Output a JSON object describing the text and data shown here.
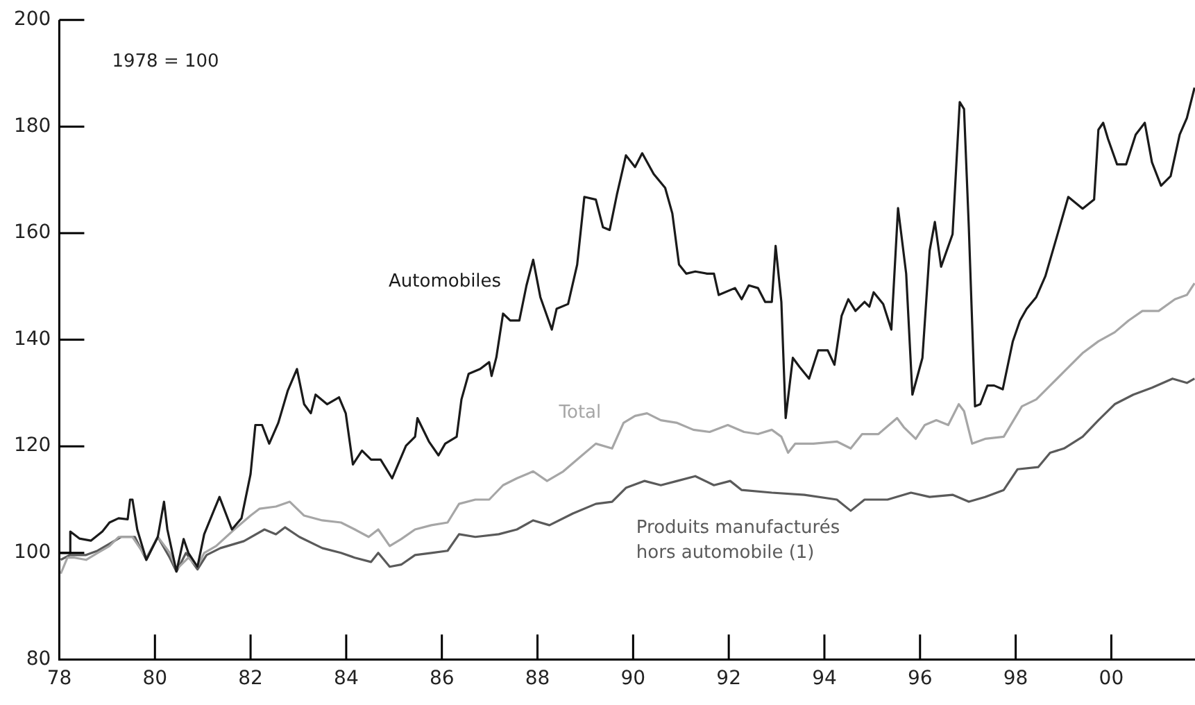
{
  "chart_data": {
    "type": "line",
    "annotations": [
      "1978 = 100"
    ],
    "xlim": [
      1978,
      2001.75
    ],
    "ylim": [
      80,
      200
    ],
    "xticks": [
      {
        "value": 1978,
        "label": "78"
      },
      {
        "value": 1980,
        "label": "80"
      },
      {
        "value": 1982,
        "label": "82"
      },
      {
        "value": 1984,
        "label": "84"
      },
      {
        "value": 1986,
        "label": "86"
      },
      {
        "value": 1988,
        "label": "88"
      },
      {
        "value": 1990,
        "label": "90"
      },
      {
        "value": 1992,
        "label": "92"
      },
      {
        "value": 1994,
        "label": "94"
      },
      {
        "value": 1996,
        "label": "96"
      },
      {
        "value": 1998,
        "label": "98"
      },
      {
        "value": 2000,
        "label": "00"
      }
    ],
    "yticks": [
      80,
      100,
      120,
      140,
      160,
      180,
      200
    ],
    "grid": false,
    "legend": false,
    "marker": "none",
    "line_style": "solid",
    "series": [
      {
        "name": "Automobiles",
        "color": "#1a1a1a",
        "x": [
          1978.0,
          1978.22,
          1978.23,
          1978.42,
          1978.66,
          1978.9,
          1979.05,
          1979.24,
          1979.43,
          1979.48,
          1979.53,
          1979.63,
          1979.82,
          1980.06,
          1980.19,
          1980.26,
          1980.45,
          1980.6,
          1980.7,
          1980.89,
          1981.03,
          1981.23,
          1981.35,
          1981.61,
          1981.81,
          1982.0,
          1982.1,
          1982.24,
          1982.39,
          1982.58,
          1982.78,
          1982.97,
          1983.12,
          1983.26,
          1983.36,
          1983.6,
          1983.85,
          1983.99,
          1984.14,
          1984.33,
          1984.52,
          1984.72,
          1984.96,
          1985.25,
          1985.44,
          1985.49,
          1985.73,
          1985.93,
          1986.07,
          1986.31,
          1986.41,
          1986.56,
          1986.8,
          1986.99,
          1987.04,
          1987.14,
          1987.28,
          1987.43,
          1987.62,
          1987.77,
          1987.91,
          1988.06,
          1988.3,
          1988.4,
          1988.64,
          1988.83,
          1988.98,
          1989.22,
          1989.37,
          1989.51,
          1989.66,
          1989.85,
          1990.04,
          1990.19,
          1990.43,
          1990.67,
          1990.82,
          1990.96,
          1991.11,
          1991.3,
          1991.55,
          1991.69,
          1991.79,
          1992.13,
          1992.27,
          1992.42,
          1992.61,
          1992.76,
          1992.9,
          1992.98,
          1993.1,
          1993.19,
          1993.34,
          1993.48,
          1993.68,
          1993.87,
          1994.07,
          1994.21,
          1994.36,
          1994.5,
          1994.65,
          1994.84,
          1994.94,
          1995.03,
          1995.23,
          1995.4,
          1995.54,
          1995.71,
          1995.84,
          1996.05,
          1996.2,
          1996.31,
          1996.44,
          1996.68,
          1996.83,
          1996.92,
          1997.02,
          1997.15,
          1997.26,
          1997.41,
          1997.55,
          1997.73,
          1997.94,
          1998.09,
          1998.23,
          1998.43,
          1998.62,
          1998.86,
          1999.1,
          1999.4,
          1999.64,
          1999.73,
          1999.83,
          1999.93,
          2000.12,
          2000.31,
          2000.51,
          2000.7,
          2000.85,
          2001.04,
          2001.24,
          2001.43,
          2001.58,
          2001.74
        ],
        "values": [
          100,
          100,
          104,
          102.7,
          102.3,
          104,
          105.7,
          106.5,
          106.3,
          110,
          110,
          104.4,
          98.7,
          103,
          109.6,
          104.4,
          96.5,
          102.6,
          100,
          97.4,
          103.5,
          107.9,
          110.5,
          104.4,
          106.5,
          114.8,
          124,
          124,
          120.5,
          124.4,
          130.5,
          134.5,
          127.9,
          126.2,
          129.7,
          127.9,
          129.2,
          126.2,
          116.6,
          119.2,
          117.5,
          117.5,
          114,
          120.1,
          121.8,
          125.3,
          120.9,
          118.3,
          120.5,
          121.8,
          128.8,
          133.6,
          134.5,
          135.8,
          133.2,
          136.7,
          144.9,
          143.6,
          143.6,
          150.2,
          155,
          148,
          141.9,
          145.8,
          146.7,
          154.1,
          166.8,
          166.3,
          161.1,
          160.6,
          167.2,
          174.6,
          172.4,
          175,
          171.1,
          168.5,
          163.7,
          154.1,
          152.4,
          152.8,
          152.4,
          152.4,
          148.4,
          149.7,
          147.6,
          150.2,
          149.7,
          147.1,
          147.1,
          157.6,
          147.1,
          125.3,
          136.6,
          134.9,
          132.7,
          138,
          138,
          135.3,
          144.5,
          147.6,
          145.4,
          147.1,
          146.2,
          148.9,
          146.7,
          141.9,
          164.7,
          152.4,
          129.7,
          136.6,
          156.7,
          162.1,
          153.7,
          159.8,
          184.6,
          183.3,
          161.1,
          127.5,
          127.9,
          131.4,
          131.4,
          130.7,
          139.7,
          143.6,
          145.8,
          148,
          151.9,
          159.3,
          166.8,
          164.6,
          166.3,
          179.4,
          180.7,
          177.7,
          172.9,
          172.9,
          178.5,
          180.7,
          173.3,
          168.9,
          170.7,
          178.5,
          181.6,
          187.3
        ]
      },
      {
        "name": "Total",
        "color": "#a6a6a6",
        "x": [
          1978.03,
          1978.17,
          1978.32,
          1978.56,
          1978.8,
          1979.05,
          1979.24,
          1979.53,
          1979.82,
          1980.06,
          1980.31,
          1980.45,
          1980.7,
          1980.89,
          1981.03,
          1981.28,
          1981.66,
          1982.0,
          1982.19,
          1982.53,
          1982.82,
          1983.12,
          1983.5,
          1983.89,
          1984.18,
          1984.47,
          1984.67,
          1984.91,
          1985.15,
          1985.44,
          1985.78,
          1986.12,
          1986.36,
          1986.7,
          1986.99,
          1987.28,
          1987.57,
          1987.91,
          1988.2,
          1988.54,
          1988.88,
          1989.22,
          1989.56,
          1989.8,
          1990.04,
          1990.29,
          1990.58,
          1990.92,
          1991.26,
          1991.6,
          1991.98,
          1992.32,
          1992.61,
          1992.9,
          1993.1,
          1993.24,
          1993.39,
          1993.77,
          1994.26,
          1994.55,
          1994.79,
          1995.13,
          1995.52,
          1995.66,
          1995.91,
          1996.1,
          1996.34,
          1996.59,
          1996.81,
          1996.92,
          1997.09,
          1997.36,
          1997.75,
          1998.13,
          1998.43,
          1998.72,
          1999.01,
          1999.4,
          1999.73,
          2000.07,
          2000.36,
          2000.65,
          2000.99,
          2001.33,
          2001.58,
          2001.74
        ],
        "values": [
          96.1,
          99.1,
          99.1,
          98.7,
          100,
          101.3,
          103,
          103,
          99.1,
          103,
          100,
          96.9,
          99.1,
          97.4,
          100,
          101.3,
          104.4,
          107,
          108.3,
          108.7,
          109.6,
          107,
          106.1,
          105.7,
          104.4,
          103,
          104.4,
          101.3,
          102.6,
          104.4,
          105.2,
          105.7,
          109.2,
          110,
          110,
          112.7,
          114,
          115.3,
          113.5,
          115.3,
          117.9,
          120.5,
          119.6,
          124.4,
          125.7,
          126.2,
          124.9,
          124.4,
          123.1,
          122.7,
          124,
          122.7,
          122.3,
          123.1,
          121.8,
          118.8,
          120.5,
          120.5,
          120.9,
          119.6,
          122.3,
          122.3,
          125.3,
          123.6,
          121.4,
          124,
          124.9,
          124,
          127.9,
          126.6,
          120.5,
          121.4,
          121.8,
          127.5,
          128.8,
          131.4,
          134,
          137.5,
          139.7,
          141.4,
          143.6,
          145.4,
          145.4,
          147.6,
          148.4,
          150.6
        ]
      },
      {
        "name": "Produits manufacturés hors automobile (1)",
        "color": "#5a5a5a",
        "x": [
          1978.03,
          1978.22,
          1978.56,
          1978.8,
          1979.05,
          1979.29,
          1979.58,
          1979.82,
          1980.06,
          1980.31,
          1980.45,
          1980.65,
          1980.89,
          1981.08,
          1981.37,
          1981.86,
          1982.29,
          1982.53,
          1982.72,
          1983.02,
          1983.5,
          1983.89,
          1984.18,
          1984.52,
          1984.67,
          1984.91,
          1985.15,
          1985.44,
          1985.78,
          1986.12,
          1986.36,
          1986.7,
          1987.19,
          1987.57,
          1987.91,
          1988.25,
          1988.74,
          1989.22,
          1989.56,
          1989.85,
          1990.24,
          1990.58,
          1990.92,
          1991.3,
          1991.69,
          1992.03,
          1992.27,
          1992.9,
          1993.58,
          1994.26,
          1994.55,
          1994.84,
          1995.32,
          1995.81,
          1996.2,
          1996.68,
          1997.02,
          1997.36,
          1997.75,
          1998.04,
          1998.47,
          1998.72,
          1999.01,
          1999.4,
          1999.73,
          2000.07,
          2000.46,
          2000.85,
          2001.28,
          2001.58,
          2001.74
        ],
        "values": [
          98.7,
          99.6,
          99.6,
          100.4,
          101.7,
          103,
          103,
          98.7,
          103,
          99.1,
          96.5,
          100,
          96.9,
          99.6,
          100.9,
          102.2,
          104.4,
          103.5,
          104.8,
          103,
          100.9,
          100,
          99.1,
          98.3,
          100,
          97.4,
          97.8,
          99.6,
          100,
          100.4,
          103.5,
          103,
          103.5,
          104.4,
          106.1,
          105.2,
          107.4,
          109.2,
          109.6,
          112.2,
          113.5,
          112.7,
          113.5,
          114.4,
          112.7,
          113.5,
          111.8,
          111.3,
          110.9,
          110,
          107.9,
          110,
          110,
          111.3,
          110.5,
          110.9,
          109.6,
          110.5,
          111.8,
          115.7,
          116.1,
          118.8,
          119.6,
          121.8,
          124.9,
          127.9,
          129.7,
          131,
          132.7,
          131.9,
          132.7
        ]
      }
    ]
  }
}
